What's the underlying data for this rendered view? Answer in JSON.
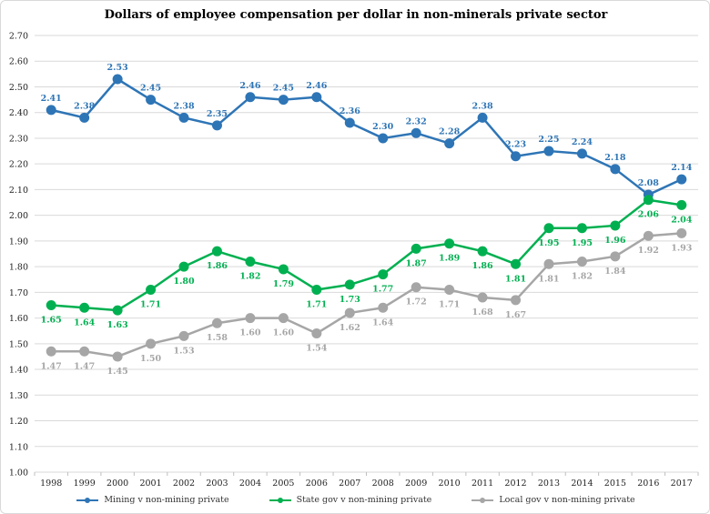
{
  "chart_data": {
    "type": "line",
    "title": "Dollars of employee compensation per dollar in non-minerals private sector",
    "x": [
      "1998",
      "1999",
      "2000",
      "2001",
      "2002",
      "2003",
      "2004",
      "2005",
      "2006",
      "2007",
      "2008",
      "2009",
      "2010",
      "2011",
      "2012",
      "2013",
      "2014",
      "2015",
      "2016",
      "2017"
    ],
    "ylim": [
      1.0,
      2.7
    ],
    "yticks": [
      "1.00",
      "1.10",
      "1.20",
      "1.30",
      "1.40",
      "1.50",
      "1.60",
      "1.70",
      "1.80",
      "1.90",
      "2.00",
      "2.10",
      "2.20",
      "2.30",
      "2.40",
      "2.50",
      "2.60",
      "2.70"
    ],
    "grid": true,
    "legend_position": "bottom",
    "series": [
      {
        "name": "Mining v non-mining private",
        "color": "#2e75b6",
        "label_position": "above",
        "values": [
          2.41,
          2.38,
          2.53,
          2.45,
          2.38,
          2.35,
          2.46,
          2.45,
          2.46,
          2.36,
          2.3,
          2.32,
          2.28,
          2.38,
          2.23,
          2.25,
          2.24,
          2.18,
          2.08,
          2.14
        ],
        "labels": [
          "2.41",
          "2.38",
          "2.53",
          "2.45",
          "2.38",
          "2.35",
          "2.46",
          "2.45",
          "2.46",
          "2.36",
          "2.30",
          "2.32",
          "2.28",
          "2.38",
          "2.23",
          "2.25",
          "2.24",
          "2.18",
          "2.08",
          "2.14"
        ]
      },
      {
        "name": "State gov v non-mining private",
        "color": "#00b050",
        "label_position": "below",
        "values": [
          1.65,
          1.64,
          1.63,
          1.71,
          1.8,
          1.86,
          1.82,
          1.79,
          1.71,
          1.73,
          1.77,
          1.87,
          1.89,
          1.86,
          1.81,
          1.95,
          1.95,
          1.96,
          2.06,
          2.04
        ],
        "labels": [
          "1.65",
          "1.64",
          "1.63",
          "1.71",
          "1.80",
          "1.86",
          "1.82",
          "1.79",
          "1.71",
          "1.73",
          "1.77",
          "1.87",
          "1.89",
          "1.86",
          "1.81",
          "1.95",
          "1.95",
          "1.96",
          "2.06",
          "2.04"
        ]
      },
      {
        "name": "Local gov v non-mining private",
        "color": "#a6a6a6",
        "label_position": "below",
        "values": [
          1.47,
          1.47,
          1.45,
          1.5,
          1.53,
          1.58,
          1.6,
          1.6,
          1.54,
          1.62,
          1.64,
          1.72,
          1.71,
          1.68,
          1.67,
          1.81,
          1.82,
          1.84,
          1.92,
          1.93
        ],
        "labels": [
          "1.47",
          "1.47",
          "1.45",
          "1.50",
          "1.53",
          "1.58",
          "1.60",
          "1.60",
          "1.54",
          "1.62",
          "1.64",
          "1.72",
          "1.71",
          "1.68",
          "1.67",
          "1.81",
          "1.82",
          "1.84",
          "1.92",
          "1.93"
        ]
      }
    ]
  }
}
